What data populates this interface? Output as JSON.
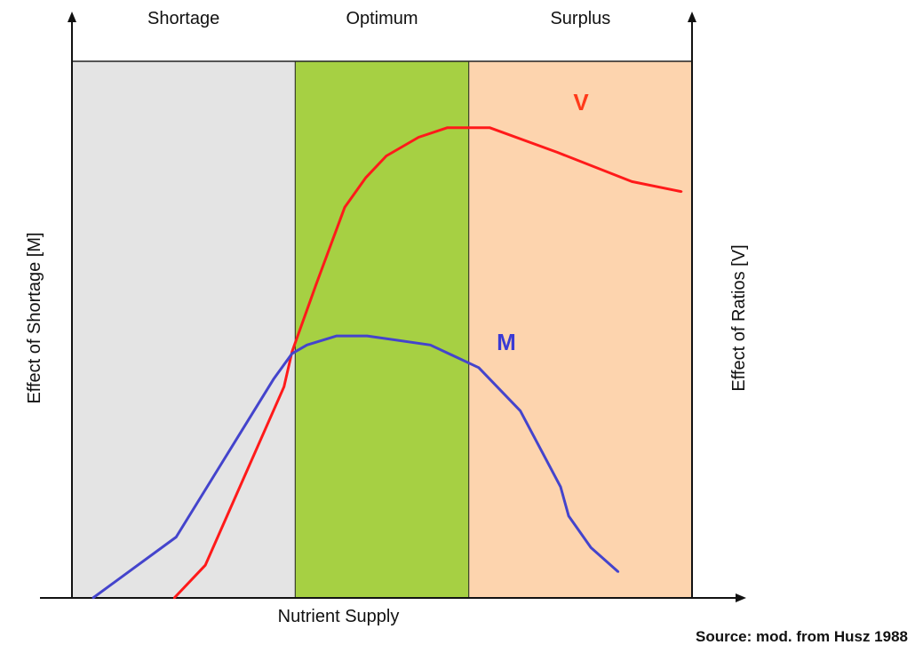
{
  "chart_data": {
    "type": "line",
    "xlabel": "Nutrient Supply",
    "ylabel_left": "Effect of Shortage [M]",
    "ylabel_right": "Effect of Ratios [V]",
    "xlim": [
      0,
      100
    ],
    "ylim": [
      0,
      100
    ],
    "grid": false,
    "zones": [
      {
        "name": "Shortage",
        "x_start": 0,
        "x_end": 36,
        "color": "#e4e4e4"
      },
      {
        "name": "Optimum",
        "x_start": 36,
        "x_end": 64,
        "color": "#a6d043"
      },
      {
        "name": "Surplus",
        "x_start": 64,
        "x_end": 100,
        "color": "#fdd4ae"
      }
    ],
    "series": [
      {
        "name": "V",
        "color": "#ff1a1a",
        "x": [
          16.5,
          21.5,
          34.2,
          35.5,
          39.4,
          44.0,
          47.4,
          50.7,
          55.9,
          60.5,
          67.4,
          78.3,
          90.3,
          98.3
        ],
        "y": [
          0.0,
          6.5,
          42.0,
          49.0,
          62.4,
          77.7,
          83.6,
          87.9,
          91.6,
          93.5,
          93.5,
          88.6,
          82.8,
          80.8
        ]
      },
      {
        "name": "M",
        "color": "#4444cc",
        "x": [
          3.4,
          16.8,
          32.5,
          35.5,
          37.9,
          42.7,
          47.6,
          57.8,
          65.6,
          72.3,
          78.8,
          80.1,
          83.7,
          88.1
        ],
        "y": [
          0.0,
          12.1,
          43.5,
          48.6,
          50.3,
          52.1,
          52.1,
          50.3,
          45.8,
          37.2,
          22.1,
          16.3,
          10.0,
          5.2
        ]
      }
    ],
    "series_label_colors": {
      "V": "#ff3a1a",
      "M": "#3a3ad4"
    }
  },
  "source": "Source: mod. from Husz 1988"
}
